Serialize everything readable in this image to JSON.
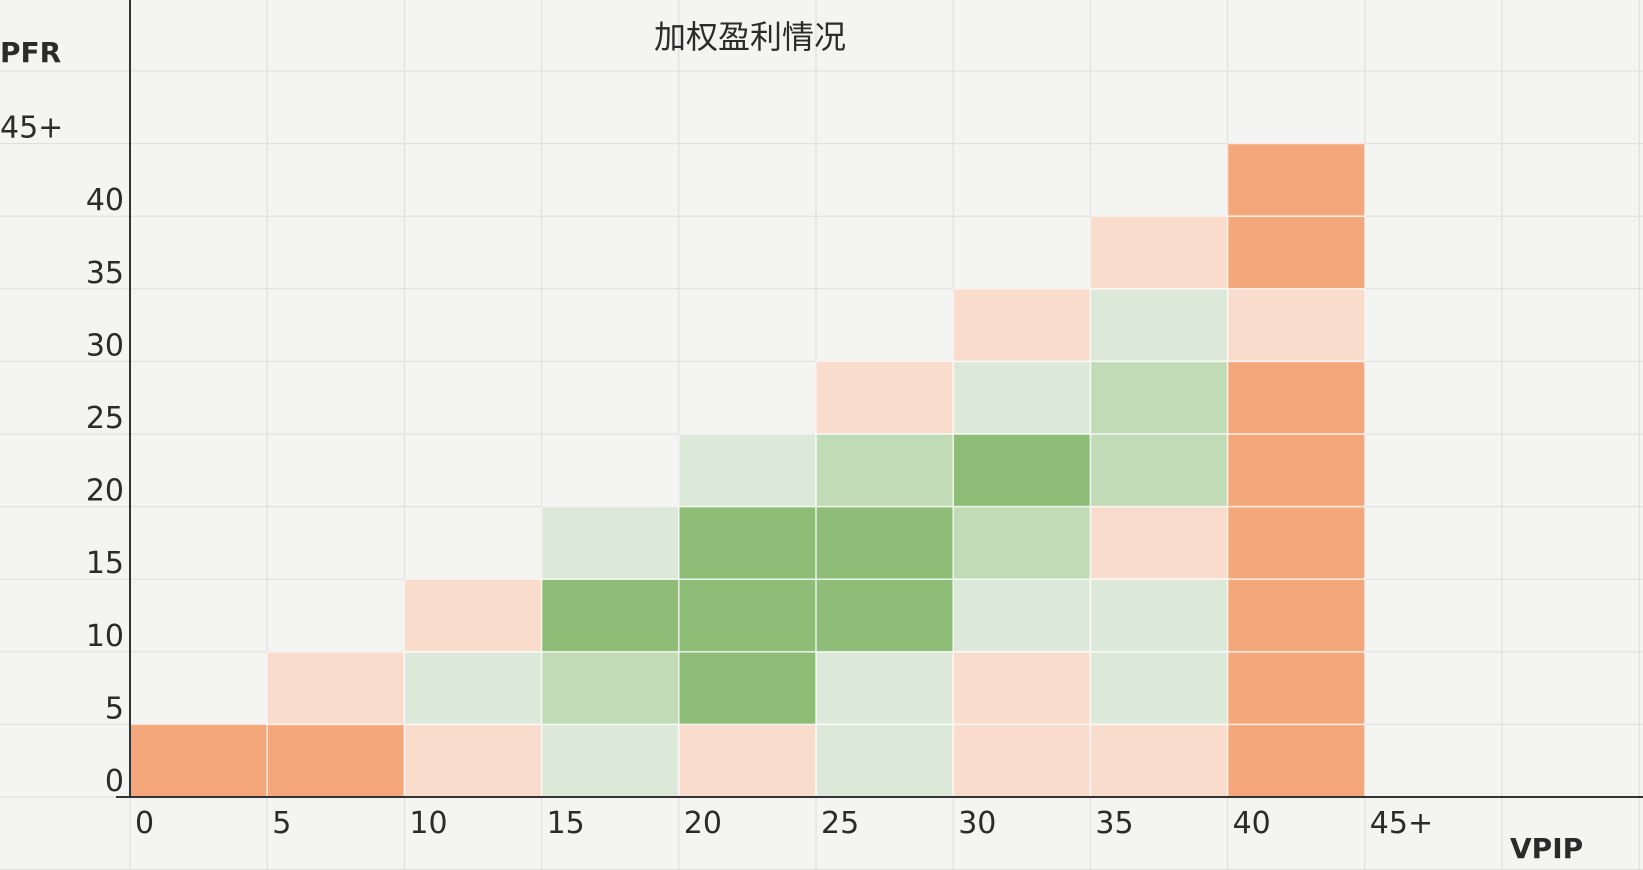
{
  "chart_data": {
    "type": "heatmap",
    "title": "加权盈利情况",
    "xlabel": "VPIP",
    "ylabel": "PFR",
    "x_ticks": [
      "0",
      "5",
      "10",
      "15",
      "20",
      "25",
      "30",
      "35",
      "40",
      "45+"
    ],
    "y_ticks": [
      "0",
      "5",
      "10",
      "15",
      "20",
      "25",
      "30",
      "35",
      "40",
      "45+"
    ],
    "scale": {
      "description": "qualitative: orange = loss, light orange = slight loss, light green = slight profit, green = profit, dark green = strong profit",
      "levels": {
        "-3": "#f4a77a",
        "-1": "#fadccc",
        "1": "#dde9d8",
        "2": "#c2dbb7",
        "3": "#9ec78b",
        "4": "#8dbd76"
      }
    },
    "cells": [
      {
        "vpip": "0",
        "pfr": "0",
        "level": -3
      },
      {
        "vpip": "5",
        "pfr": "0",
        "level": -3
      },
      {
        "vpip": "5",
        "pfr": "5",
        "level": -1
      },
      {
        "vpip": "10",
        "pfr": "0",
        "level": -1
      },
      {
        "vpip": "10",
        "pfr": "5",
        "level": 1
      },
      {
        "vpip": "10",
        "pfr": "10",
        "level": -1
      },
      {
        "vpip": "15",
        "pfr": "0",
        "level": 1
      },
      {
        "vpip": "15",
        "pfr": "5",
        "level": 2
      },
      {
        "vpip": "15",
        "pfr": "10",
        "level": 4
      },
      {
        "vpip": "15",
        "pfr": "15",
        "level": 1
      },
      {
        "vpip": "20",
        "pfr": "0",
        "level": -1
      },
      {
        "vpip": "20",
        "pfr": "5",
        "level": 4
      },
      {
        "vpip": "20",
        "pfr": "10",
        "level": 4
      },
      {
        "vpip": "20",
        "pfr": "15",
        "level": 4
      },
      {
        "vpip": "20",
        "pfr": "20",
        "level": 1
      },
      {
        "vpip": "25",
        "pfr": "0",
        "level": 1
      },
      {
        "vpip": "25",
        "pfr": "5",
        "level": 1
      },
      {
        "vpip": "25",
        "pfr": "10",
        "level": 4
      },
      {
        "vpip": "25",
        "pfr": "15",
        "level": 4
      },
      {
        "vpip": "25",
        "pfr": "20",
        "level": 2
      },
      {
        "vpip": "25",
        "pfr": "25",
        "level": -1
      },
      {
        "vpip": "30",
        "pfr": "0",
        "level": -1
      },
      {
        "vpip": "30",
        "pfr": "5",
        "level": -1
      },
      {
        "vpip": "30",
        "pfr": "10",
        "level": 1
      },
      {
        "vpip": "30",
        "pfr": "15",
        "level": 2
      },
      {
        "vpip": "30",
        "pfr": "20",
        "level": 4
      },
      {
        "vpip": "30",
        "pfr": "25",
        "level": 1
      },
      {
        "vpip": "30",
        "pfr": "30",
        "level": -1
      },
      {
        "vpip": "35",
        "pfr": "0",
        "level": -1
      },
      {
        "vpip": "35",
        "pfr": "5",
        "level": 1
      },
      {
        "vpip": "35",
        "pfr": "10",
        "level": 1
      },
      {
        "vpip": "35",
        "pfr": "15",
        "level": -1
      },
      {
        "vpip": "35",
        "pfr": "20",
        "level": 2
      },
      {
        "vpip": "35",
        "pfr": "25",
        "level": 2
      },
      {
        "vpip": "35",
        "pfr": "30",
        "level": 1
      },
      {
        "vpip": "35",
        "pfr": "35",
        "level": -1
      },
      {
        "vpip": "40",
        "pfr": "0",
        "level": -3
      },
      {
        "vpip": "40",
        "pfr": "5",
        "level": -3
      },
      {
        "vpip": "40",
        "pfr": "10",
        "level": -3
      },
      {
        "vpip": "40",
        "pfr": "15",
        "level": -3
      },
      {
        "vpip": "40",
        "pfr": "20",
        "level": -3
      },
      {
        "vpip": "40",
        "pfr": "25",
        "level": -3
      },
      {
        "vpip": "40",
        "pfr": "30",
        "level": -1
      },
      {
        "vpip": "40",
        "pfr": "35",
        "level": -3
      },
      {
        "vpip": "40",
        "pfr": "40",
        "level": -3
      }
    ],
    "grid": true,
    "legend": "none"
  }
}
